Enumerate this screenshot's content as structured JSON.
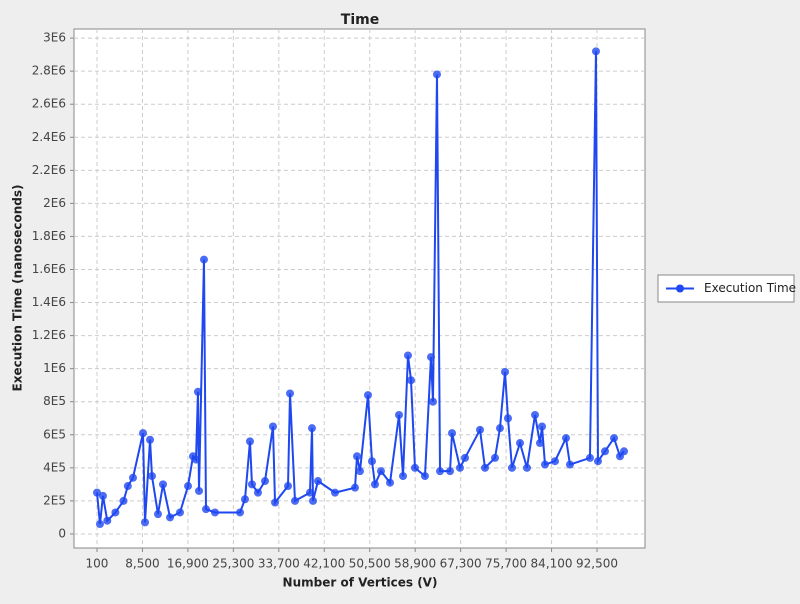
{
  "chart_data": {
    "type": "line",
    "title": "Time",
    "x_label": "Number of Vertices (V)",
    "y_label": "Execution Time (nanoseconds)",
    "x": [
      100,
      650,
      1200,
      2000,
      3500,
      5000,
      5800,
      6750,
      8600,
      8970,
      9900,
      10260,
      11370,
      12300,
      13600,
      15440,
      16920,
      17840,
      18400,
      18760,
      18950,
      19870,
      20240,
      21900,
      26530,
      27450,
      28370,
      28740,
      29850,
      31150,
      32620,
      33000,
      35400,
      35770,
      36690,
      39460,
      39830,
      40020,
      40940,
      44080,
      47780,
      48150,
      48700,
      50180,
      50920,
      51470,
      52580,
      54250,
      55910,
      56650,
      57570,
      58130,
      58860,
      60710,
      61820,
      62190,
      62930,
      63490,
      65340,
      65710,
      67180,
      68110,
      70880,
      71800,
      73650,
      74570,
      75500,
      76050,
      76790,
      78270,
      79560,
      81040,
      81960,
      82340,
      82890,
      84740,
      86770,
      87500,
      91200,
      92310,
      92680,
      93980,
      95640,
      96750,
      97490
    ],
    "series": [
      {
        "name": "Execution Time",
        "color": "#1f48f0",
        "values": [
          250000,
          60000,
          230000,
          80000,
          130000,
          200000,
          290000,
          340000,
          610000,
          70000,
          570000,
          350000,
          120000,
          300000,
          100000,
          130000,
          290000,
          470000,
          450000,
          860000,
          260000,
          1660000,
          150000,
          130000,
          130000,
          210000,
          560000,
          300000,
          250000,
          320000,
          650000,
          190000,
          290000,
          850000,
          200000,
          250000,
          640000,
          200000,
          320000,
          250000,
          280000,
          470000,
          380000,
          840000,
          440000,
          300000,
          380000,
          310000,
          720000,
          350000,
          1080000,
          930000,
          400000,
          350000,
          1070000,
          800000,
          2780000,
          380000,
          380000,
          610000,
          400000,
          460000,
          630000,
          400000,
          460000,
          640000,
          980000,
          700000,
          400000,
          550000,
          400000,
          720000,
          550000,
          650000,
          420000,
          440000,
          580000,
          420000,
          460000,
          2920000,
          440000,
          500000,
          580000,
          470000,
          500000
        ]
      }
    ],
    "xlim": [
      -4150,
      101370
    ],
    "ylim": [
      -85000,
      3055000
    ],
    "xticks": [
      100,
      {
        "value": 8500,
        "label": "8,500"
      },
      {
        "value": 16900,
        "label": "16,900"
      },
      {
        "value": 25300,
        "label": "25,300"
      },
      {
        "value": 33700,
        "label": "33,700"
      },
      {
        "value": 42100,
        "label": "42,100"
      },
      {
        "value": 50500,
        "label": "50,500"
      },
      {
        "value": 58900,
        "label": "58,900"
      },
      {
        "value": 67300,
        "label": "67,300"
      },
      {
        "value": 75700,
        "label": "75,700"
      },
      {
        "value": 84100,
        "label": "84,100"
      },
      {
        "value": 92500,
        "label": "92,500"
      }
    ],
    "yticks": [
      0,
      {
        "value": 200000,
        "label": "2E5"
      },
      {
        "value": 400000,
        "label": "4E5"
      },
      {
        "value": 600000,
        "label": "6E5"
      },
      {
        "value": 800000,
        "label": "8E5"
      },
      {
        "value": 1000000,
        "label": "1E6"
      },
      {
        "value": 1200000,
        "label": "1.2E6"
      },
      {
        "value": 1400000,
        "label": "1.4E6"
      },
      {
        "value": 1600000,
        "label": "1.6E6"
      },
      {
        "value": 1800000,
        "label": "1.8E6"
      },
      {
        "value": 2000000,
        "label": "2E6"
      },
      {
        "value": 2200000,
        "label": "2.2E6"
      },
      {
        "value": 2400000,
        "label": "2.4E6"
      },
      {
        "value": 2600000,
        "label": "2.6E6"
      },
      {
        "value": 2800000,
        "label": "2.8E6"
      },
      {
        "value": 3000000,
        "label": "3E6"
      }
    ],
    "grid": true,
    "legend": "right"
  }
}
